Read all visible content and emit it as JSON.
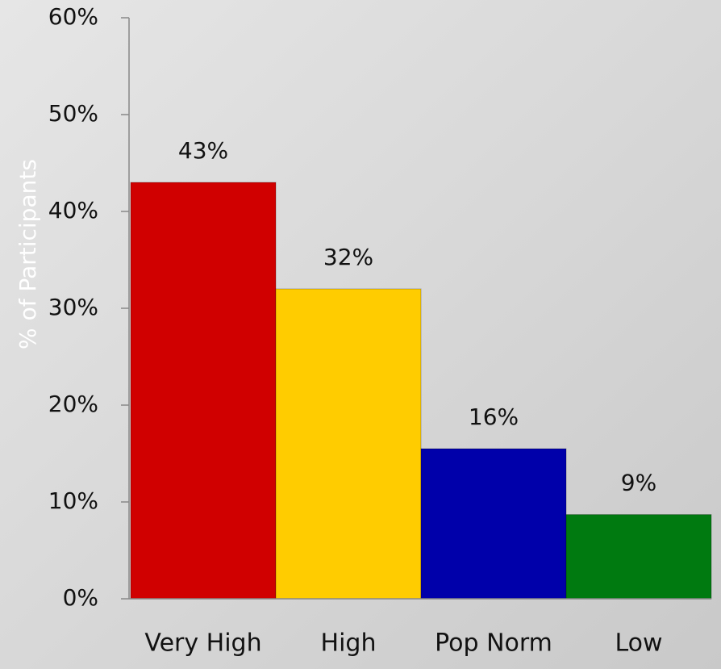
{
  "chart_data": {
    "type": "bar",
    "y_label": "% of Participants",
    "categories": [
      "Very High",
      "High",
      "Pop Norm",
      "Low"
    ],
    "values": [
      43,
      32,
      15.5,
      8.7
    ],
    "value_labels": [
      "43%",
      "32%",
      "16%",
      "9%"
    ],
    "colors": [
      "#d00000",
      "#ffcc00",
      "#0000aa",
      "#007a10"
    ],
    "ylim": [
      0,
      60
    ],
    "yticks": [
      {
        "value": 0,
        "label": "0%"
      },
      {
        "value": 10,
        "label": "10%"
      },
      {
        "value": 20,
        "label": "20%"
      },
      {
        "value": 30,
        "label": "30%"
      },
      {
        "value": 40,
        "label": "40%"
      },
      {
        "value": 50,
        "label": "50%"
      },
      {
        "value": 60,
        "label": "60%"
      }
    ]
  }
}
